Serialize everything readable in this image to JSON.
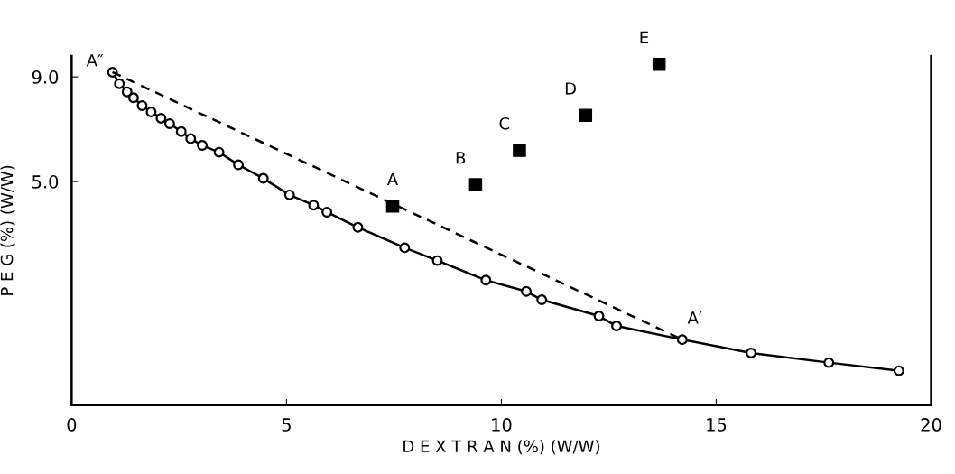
{
  "chart_data": {
    "type": "scatter",
    "xlabel": "D E X T R A N (%) (W/W)",
    "ylabel": "P E G (%) (W/W)",
    "xlim": [
      0,
      20
    ],
    "xticks": [
      0,
      5,
      10,
      15,
      20
    ],
    "ylim": [
      -3.55,
      9.8
    ],
    "yticks": [
      {
        "value": 5,
        "label": "5.0"
      },
      {
        "value": 9,
        "label": "9.0"
      }
    ],
    "grid": false,
    "legend": false,
    "series": [
      {
        "type": "line",
        "color": "#000000",
        "marker": "circle",
        "line_style": "solid",
        "x": [
          0.95,
          1.11,
          1.29,
          1.44,
          1.64,
          1.85,
          2.08,
          2.28,
          2.55,
          2.77,
          3.04,
          3.43,
          3.88,
          4.46,
          5.07,
          5.63,
          5.94,
          6.66,
          7.75,
          8.51,
          9.64,
          10.58,
          10.94,
          12.27,
          12.68,
          14.21,
          15.81,
          17.62,
          19.25
        ],
        "values": [
          9.18,
          8.74,
          8.43,
          8.2,
          7.9,
          7.66,
          7.42,
          7.21,
          6.91,
          6.64,
          6.38,
          6.12,
          5.64,
          5.12,
          4.49,
          4.1,
          3.83,
          3.25,
          2.47,
          1.98,
          1.23,
          0.8,
          0.48,
          -0.14,
          -0.52,
          -1.04,
          -1.55,
          -1.92,
          -2.23
        ]
      },
      {
        "type": "line",
        "color": "#000000",
        "marker": "none",
        "line_style": "dashed",
        "x": [
          0.95,
          14.21
        ],
        "values": [
          9.18,
          -1.04
        ]
      },
      {
        "color": "#000000",
        "marker": "square",
        "x": [
          7.47,
          9.4,
          10.42,
          11.96,
          13.67
        ],
        "values": [
          4.06,
          4.88,
          6.19,
          7.53,
          9.48
        ]
      }
    ],
    "annotations": [
      {
        "text": "A″",
        "x": 0.95,
        "y": 9.18
      },
      {
        "text": "A′",
        "x": 14.21,
        "y": -1.04
      },
      {
        "text": "A",
        "x": 7.47,
        "y": 4.06
      },
      {
        "text": "B",
        "x": 9.4,
        "y": 4.88
      },
      {
        "text": "C",
        "x": 10.42,
        "y": 6.19
      },
      {
        "text": "D",
        "x": 11.96,
        "y": 7.53
      },
      {
        "text": "E",
        "x": 13.67,
        "y": 9.48
      }
    ]
  }
}
